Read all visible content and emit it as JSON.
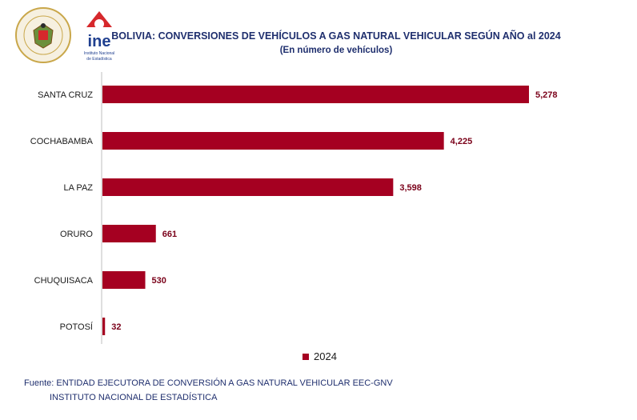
{
  "logos": {
    "seal_text_top": "PRESIDENCIA DEL ESTADO",
    "seal_text_bottom": "PLURINACIONAL DE BOLIVIA",
    "ine_text": "ine",
    "ine_caption_line1": "Instituto Nacional",
    "ine_caption_line2": "de Estadística"
  },
  "title": "BOLIVIA: CONVERSIONES DE VEHÍCULOS A GAS NATURAL VEHICULAR SEGÚN AÑO al 2024",
  "subtitle": "(En número de vehículos)",
  "chart_data": {
    "type": "bar",
    "orientation": "horizontal",
    "categories": [
      "SANTA CRUZ",
      "COCHABAMBA",
      "LA PAZ",
      "ORURO",
      "CHUQUISACA",
      "POTOSÍ"
    ],
    "series": [
      {
        "name": "2024",
        "values": [
          5278,
          4225,
          3598,
          661,
          530,
          32
        ],
        "labels": [
          "5,278",
          "4,225",
          "3,598",
          "661",
          "530",
          "32"
        ]
      }
    ],
    "color": "#a50021",
    "label_color": "#7a0019",
    "legend_position": "bottom",
    "grid": false
  },
  "legend": {
    "label": "2024"
  },
  "source": {
    "line1": "Fuente: ENTIDAD EJECUTORA DE CONVERSIÓN A GAS NATURAL VEHICULAR EEC-GNV",
    "line2": "INSTITUTO NACIONAL DE ESTADÍSTICA"
  }
}
